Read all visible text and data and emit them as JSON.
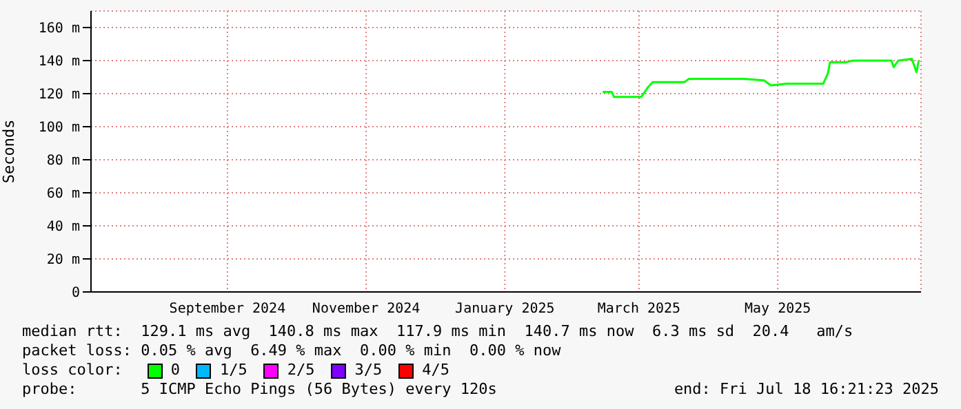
{
  "chart_data": {
    "type": "line",
    "ylabel": "Seconds",
    "x": [
      "2025-02-28",
      "2025-03-04",
      "2025-03-05",
      "2025-03-17",
      "2025-03-20",
      "2025-03-22",
      "2025-04-05",
      "2025-04-07",
      "2025-05-01",
      "2025-05-10",
      "2025-05-13",
      "2025-05-20",
      "2025-06-05",
      "2025-06-07",
      "2025-06-08",
      "2025-06-15",
      "2025-06-18",
      "2025-07-05",
      "2025-07-06",
      "2025-07-08",
      "2025-07-14",
      "2025-07-16",
      "2025-07-17"
    ],
    "series": [
      {
        "color": "#00ff00",
        "values": [
          121,
          121,
          118,
          118,
          124,
          127,
          127,
          129,
          129,
          128,
          125,
          126,
          126,
          132,
          139,
          139,
          140,
          140,
          136,
          140,
          141,
          133,
          140
        ]
      }
    ],
    "xlim": [
      "2024-07-18",
      "2025-07-18"
    ],
    "xticks": [
      {
        "value": "2024-09-16",
        "label": "September 2024"
      },
      {
        "value": "2024-11-16",
        "label": "November 2024"
      },
      {
        "value": "2025-01-16",
        "label": "January 2025"
      },
      {
        "value": "2025-03-16",
        "label": "March 2025"
      },
      {
        "value": "2025-05-16",
        "label": "May 2025"
      }
    ],
    "ylim": [
      0,
      170
    ],
    "yticks": [
      0,
      {
        "value": 20,
        "label": "20 m"
      },
      {
        "value": 40,
        "label": "40 m"
      },
      {
        "value": 60,
        "label": "60 m"
      },
      {
        "value": 80,
        "label": "80 m"
      },
      {
        "value": 100,
        "label": "100 m"
      },
      {
        "value": 120,
        "label": "120 m"
      },
      {
        "value": 140,
        "label": "140 m"
      },
      {
        "value": 160,
        "label": "160 m"
      }
    ],
    "grid": true,
    "marker": "none",
    "line_style": "solid",
    "legend": false,
    "annotations": [
      "median rtt:  129.1 ms avg  140.8 ms max  117.9 ms min  140.7 ms now  6.3 ms sd  20.4   am/s",
      "packet loss: 0.05 % avg  6.49 % max  0.00 % min  0.00 % now",
      "loss color:",
      "0",
      "1/5",
      "2/5",
      "3/5",
      "4/5",
      "probe:       5 ICMP Echo Pings (56 Bytes) every 120s",
      "end: Fri Jul 18 16:21:23 2025"
    ]
  }
}
